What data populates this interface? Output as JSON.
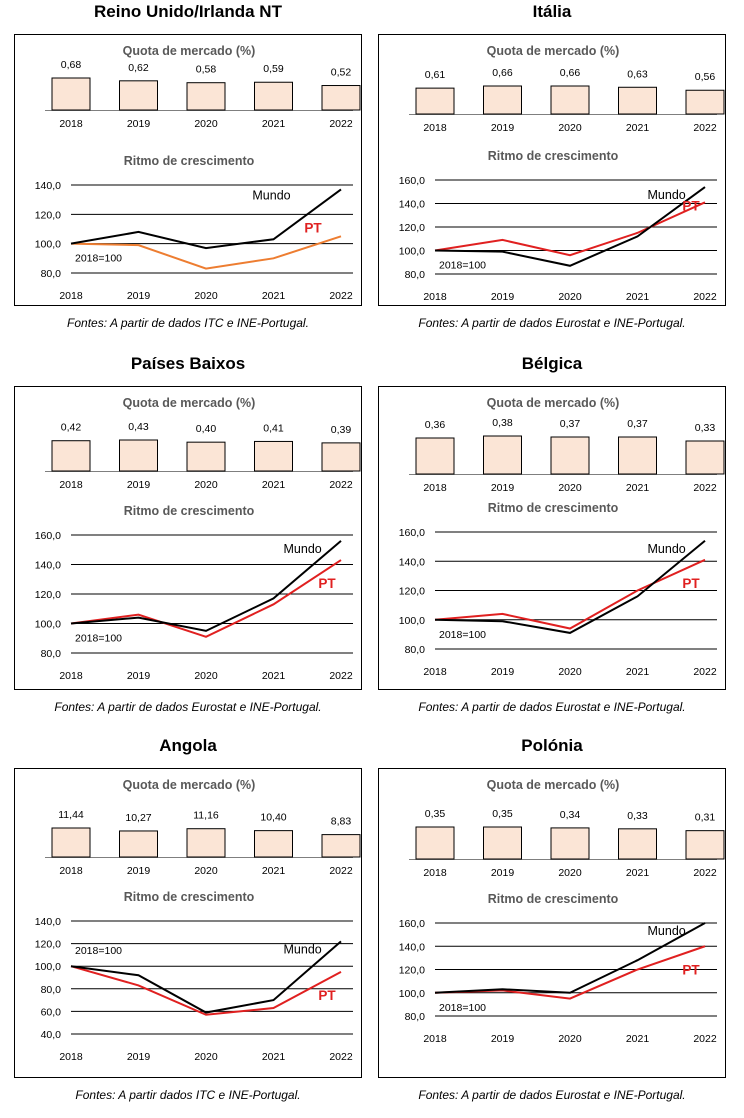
{
  "bar_subtitle": "Quota de mercado (%)",
  "line_subtitle": "Ritmo de crescimento",
  "base_label": "2018=100",
  "world_label": "Mundo",
  "pt_label": "PT",
  "colors": {
    "bar_fill": "#fbe5d6",
    "world": "#000000",
    "pt_red": "#e02020",
    "pt_orange": "#ed7d31"
  },
  "chart_data": [
    {
      "title": "Reino Unido/Irlanda NT",
      "type": "bar+line",
      "categories": [
        "2018",
        "2019",
        "2020",
        "2021",
        "2022"
      ],
      "bar_values": [
        0.68,
        0.62,
        0.58,
        0.59,
        0.52
      ],
      "bar_labels": [
        "0,68",
        "0,62",
        "0,58",
        "0,59",
        "0,52"
      ],
      "line_ylim": [
        80,
        140
      ],
      "line_ticks": [
        "140,0",
        "120,0",
        "100,0",
        "80,0"
      ],
      "world": [
        100,
        108,
        97,
        103,
        137
      ],
      "pt": [
        100,
        99,
        83,
        90,
        105
      ],
      "pt_color": "#ed7d31",
      "source": "Fontes: A partir de dados ITC e INE-Portugal."
    },
    {
      "title": "Itália",
      "type": "bar+line",
      "categories": [
        "2018",
        "2019",
        "2020",
        "2021",
        "2022"
      ],
      "bar_values": [
        0.61,
        0.66,
        0.66,
        0.63,
        0.56
      ],
      "bar_labels": [
        "0,61",
        "0,66",
        "0,66",
        "0,63",
        "0,56"
      ],
      "line_ylim": [
        80,
        160
      ],
      "line_ticks": [
        "160,0",
        "140,0",
        "120,0",
        "100,0",
        "80,0"
      ],
      "world": [
        100,
        99,
        87,
        112,
        154
      ],
      "pt": [
        100,
        109,
        96,
        115,
        141
      ],
      "pt_color": "#e02020",
      "source": "Fontes: A partir de dados Eurostat e INE-Portugal."
    },
    {
      "title": "Países Baixos",
      "type": "bar+line",
      "categories": [
        "2018",
        "2019",
        "2020",
        "2021",
        "2022"
      ],
      "bar_values": [
        0.42,
        0.43,
        0.4,
        0.41,
        0.39
      ],
      "bar_labels": [
        "0,42",
        "0,43",
        "0,40",
        "0,41",
        "0,39"
      ],
      "line_ylim": [
        80,
        160
      ],
      "line_ticks": [
        "160,0",
        "140,0",
        "120,0",
        "100,0",
        "80,0"
      ],
      "world": [
        100,
        104,
        95,
        117,
        156
      ],
      "pt": [
        100,
        106,
        91,
        113,
        143
      ],
      "pt_color": "#e02020",
      "source": "Fontes: A partir de dados Eurostat e INE-Portugal."
    },
    {
      "title": "Bélgica",
      "type": "bar+line",
      "categories": [
        "2018",
        "2019",
        "2020",
        "2021",
        "2022"
      ],
      "bar_values": [
        0.36,
        0.38,
        0.37,
        0.37,
        0.33
      ],
      "bar_labels": [
        "0,36",
        "0,38",
        "0,37",
        "0,37",
        "0,33"
      ],
      "line_ylim": [
        80,
        160
      ],
      "line_ticks": [
        "160,0",
        "140,0",
        "120,0",
        "100,0",
        "80,0"
      ],
      "world": [
        100,
        99,
        91,
        116,
        154
      ],
      "pt": [
        100,
        104,
        94,
        120,
        141
      ],
      "pt_color": "#e02020",
      "source": "Fontes: A partir de dados Eurostat e INE-Portugal."
    },
    {
      "title": "Angola",
      "type": "bar+line",
      "categories": [
        "2018",
        "2019",
        "2020",
        "2021",
        "2022"
      ],
      "bar_values": [
        11.44,
        10.27,
        11.16,
        10.4,
        8.83
      ],
      "bar_labels": [
        "11,44",
        "10,27",
        "11,16",
        "10,40",
        "8,83"
      ],
      "line_ylim": [
        40,
        140
      ],
      "line_ticks": [
        "140,0",
        "120,0",
        "100,0",
        "80,0",
        "60,0",
        "40,0"
      ],
      "world": [
        100,
        92,
        59,
        70,
        122
      ],
      "pt": [
        100,
        83,
        57,
        63,
        95
      ],
      "pt_color": "#e02020",
      "source": "Fontes: A partir dados ITC e INE-Portugal."
    },
    {
      "title": "Polónia",
      "type": "bar+line",
      "categories": [
        "2018",
        "2019",
        "2020",
        "2021",
        "2022"
      ],
      "bar_values": [
        0.35,
        0.35,
        0.34,
        0.33,
        0.31
      ],
      "bar_labels": [
        "0,35",
        "0,35",
        "0,34",
        "0,33",
        "0,31"
      ],
      "line_ylim": [
        80,
        160
      ],
      "line_ticks": [
        "160,0",
        "140,0",
        "120,0",
        "100,0",
        "80,0"
      ],
      "world": [
        100,
        103,
        100,
        128,
        160
      ],
      "pt": [
        100,
        102,
        95,
        120,
        140
      ],
      "pt_color": "#e02020",
      "source": "Fontes: A partir de dados Eurostat e INE-Portugal."
    }
  ]
}
